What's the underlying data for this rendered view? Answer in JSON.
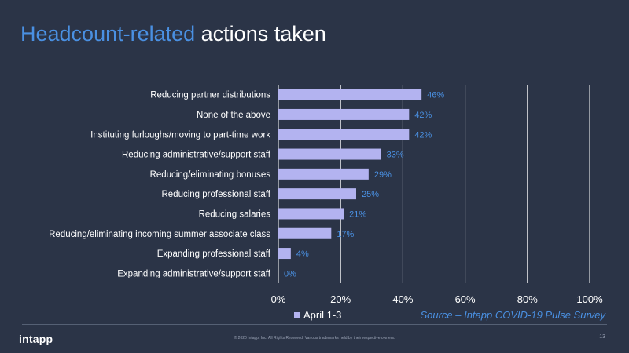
{
  "title": {
    "accent": "Headcount-related",
    "rest": " actions taken"
  },
  "chart_data": {
    "type": "bar",
    "orientation": "horizontal",
    "categories": [
      "Reducing partner distributions",
      "None of the above",
      "Instituting furloughs/moving to part-time work",
      "Reducing administrative/support staff",
      "Reducing/eliminating bonuses",
      "Reducing professional staff",
      "Reducing salaries",
      "Reducing/eliminating incoming summer associate class",
      "Expanding professional staff",
      "Expanding administrative/support staff"
    ],
    "series": [
      {
        "name": "April 1-3",
        "values": [
          46,
          42,
          42,
          33,
          29,
          25,
          21,
          17,
          4,
          0
        ]
      }
    ],
    "data_labels": [
      "46%",
      "42%",
      "42%",
      "33%",
      "29%",
      "25%",
      "21%",
      "17%",
      "4%",
      "0%"
    ],
    "xlim": [
      0,
      100
    ],
    "xticks": [
      "0%",
      "20%",
      "40%",
      "60%",
      "80%",
      "100%"
    ],
    "grid": "vertical",
    "legend": "bottom-left",
    "bar_color": "#b3b3f0",
    "label_color": "#4a90e2"
  },
  "legend_label": "April 1-3",
  "source": "Source – Intapp COVID-19 Pulse Survey",
  "footer": {
    "logo": "intapp",
    "copyright": "© 2020 Intapp, Inc. All Rights Reserved. Various trademarks held by their respective owners.",
    "page": "13"
  }
}
